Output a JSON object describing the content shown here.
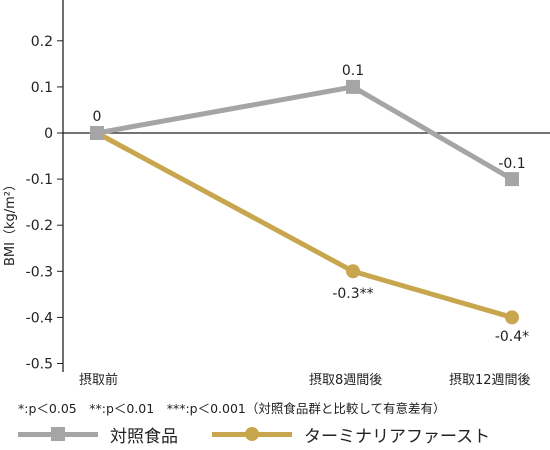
{
  "chart_data": {
    "type": "line",
    "ylabel": "BMI（kg/m²）",
    "xlabel": "",
    "ylim": [
      -0.5,
      0.2
    ],
    "yticks": [
      "0.2",
      "0.1",
      "0",
      "-0.1",
      "-0.2",
      "-0.3",
      "-0.4",
      "-0.5"
    ],
    "ytick_values": [
      0.2,
      0.1,
      0,
      -0.1,
      -0.2,
      -0.3,
      -0.4,
      -0.5
    ],
    "categories": [
      "摂取前",
      "摂取8週間後",
      "摂取12週間後"
    ],
    "series": [
      {
        "name": "対照食品",
        "values": [
          0,
          0.1,
          -0.1
        ],
        "data_labels": [
          "0",
          "0.1",
          "-0.1"
        ],
        "color": "#a5a5a5",
        "marker": "square"
      },
      {
        "name": "ターミナリアファースト",
        "values": [
          0,
          -0.3,
          -0.4
        ],
        "data_labels": [
          "",
          "-0.3**",
          "-0.4*"
        ],
        "color": "#c8a64d",
        "marker": "circle"
      }
    ],
    "footnote": "*:p＜0.05　**:p＜0.01　***:p＜0.001（対照食品群と比較して有意差有）",
    "legend_position": "bottom",
    "grid": false
  }
}
